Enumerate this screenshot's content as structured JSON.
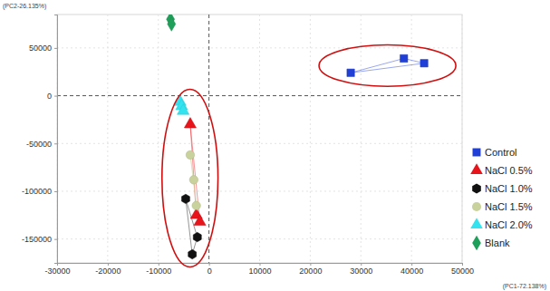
{
  "chart_data": {
    "type": "scatter",
    "x_label": "(PC1-72.138%)",
    "y_label": "(PC2-26.135%)",
    "xlim": [
      -30000,
      50000
    ],
    "xticks": [
      -30000,
      -20000,
      -10000,
      0,
      10000,
      20000,
      30000,
      40000,
      50000
    ],
    "ylim": [
      -175000,
      85000
    ],
    "yticks": [
      -150000,
      -100000,
      -50000,
      0,
      50000
    ],
    "grid": true,
    "legend": "right",
    "series": [
      {
        "name": "Control",
        "color": "#1f3fd6",
        "marker": "square",
        "line_style": "solid",
        "x": [
          28000,
          38500,
          42500
        ],
        "values": [
          24000,
          39000,
          34000
        ]
      },
      {
        "name": "NaCl 0.5%",
        "color": "#e8141b",
        "marker": "triangle",
        "line_style": "solid",
        "x": [
          -3700,
          -2500,
          -1800
        ],
        "values": [
          -30000,
          -125000,
          -132000
        ]
      },
      {
        "name": "NaCl 1.0%",
        "color": "#111111",
        "marker": "hexagon",
        "line_style": "solid",
        "x": [
          -4600,
          -2300,
          -3300
        ],
        "values": [
          -108000,
          -148000,
          -166000
        ]
      },
      {
        "name": "NaCl 1.5%",
        "color": "#c9d29c",
        "marker": "circle",
        "line_style": "solid",
        "x": [
          -3700,
          -3000,
          -2500
        ],
        "values": [
          -62000,
          -88000,
          -115000
        ]
      },
      {
        "name": "NaCl 2.0%",
        "color": "#33e3f0",
        "marker": "triangle",
        "line_style": "solid",
        "x": [
          -5700,
          -5400,
          -5100
        ],
        "values": [
          -6500,
          -11000,
          -16000
        ]
      },
      {
        "name": "Blank",
        "color": "#1fa05a",
        "marker": "diamond",
        "line_style": "solid",
        "x": [
          -7600,
          -7400
        ],
        "values": [
          80000,
          75000
        ]
      }
    ]
  }
}
